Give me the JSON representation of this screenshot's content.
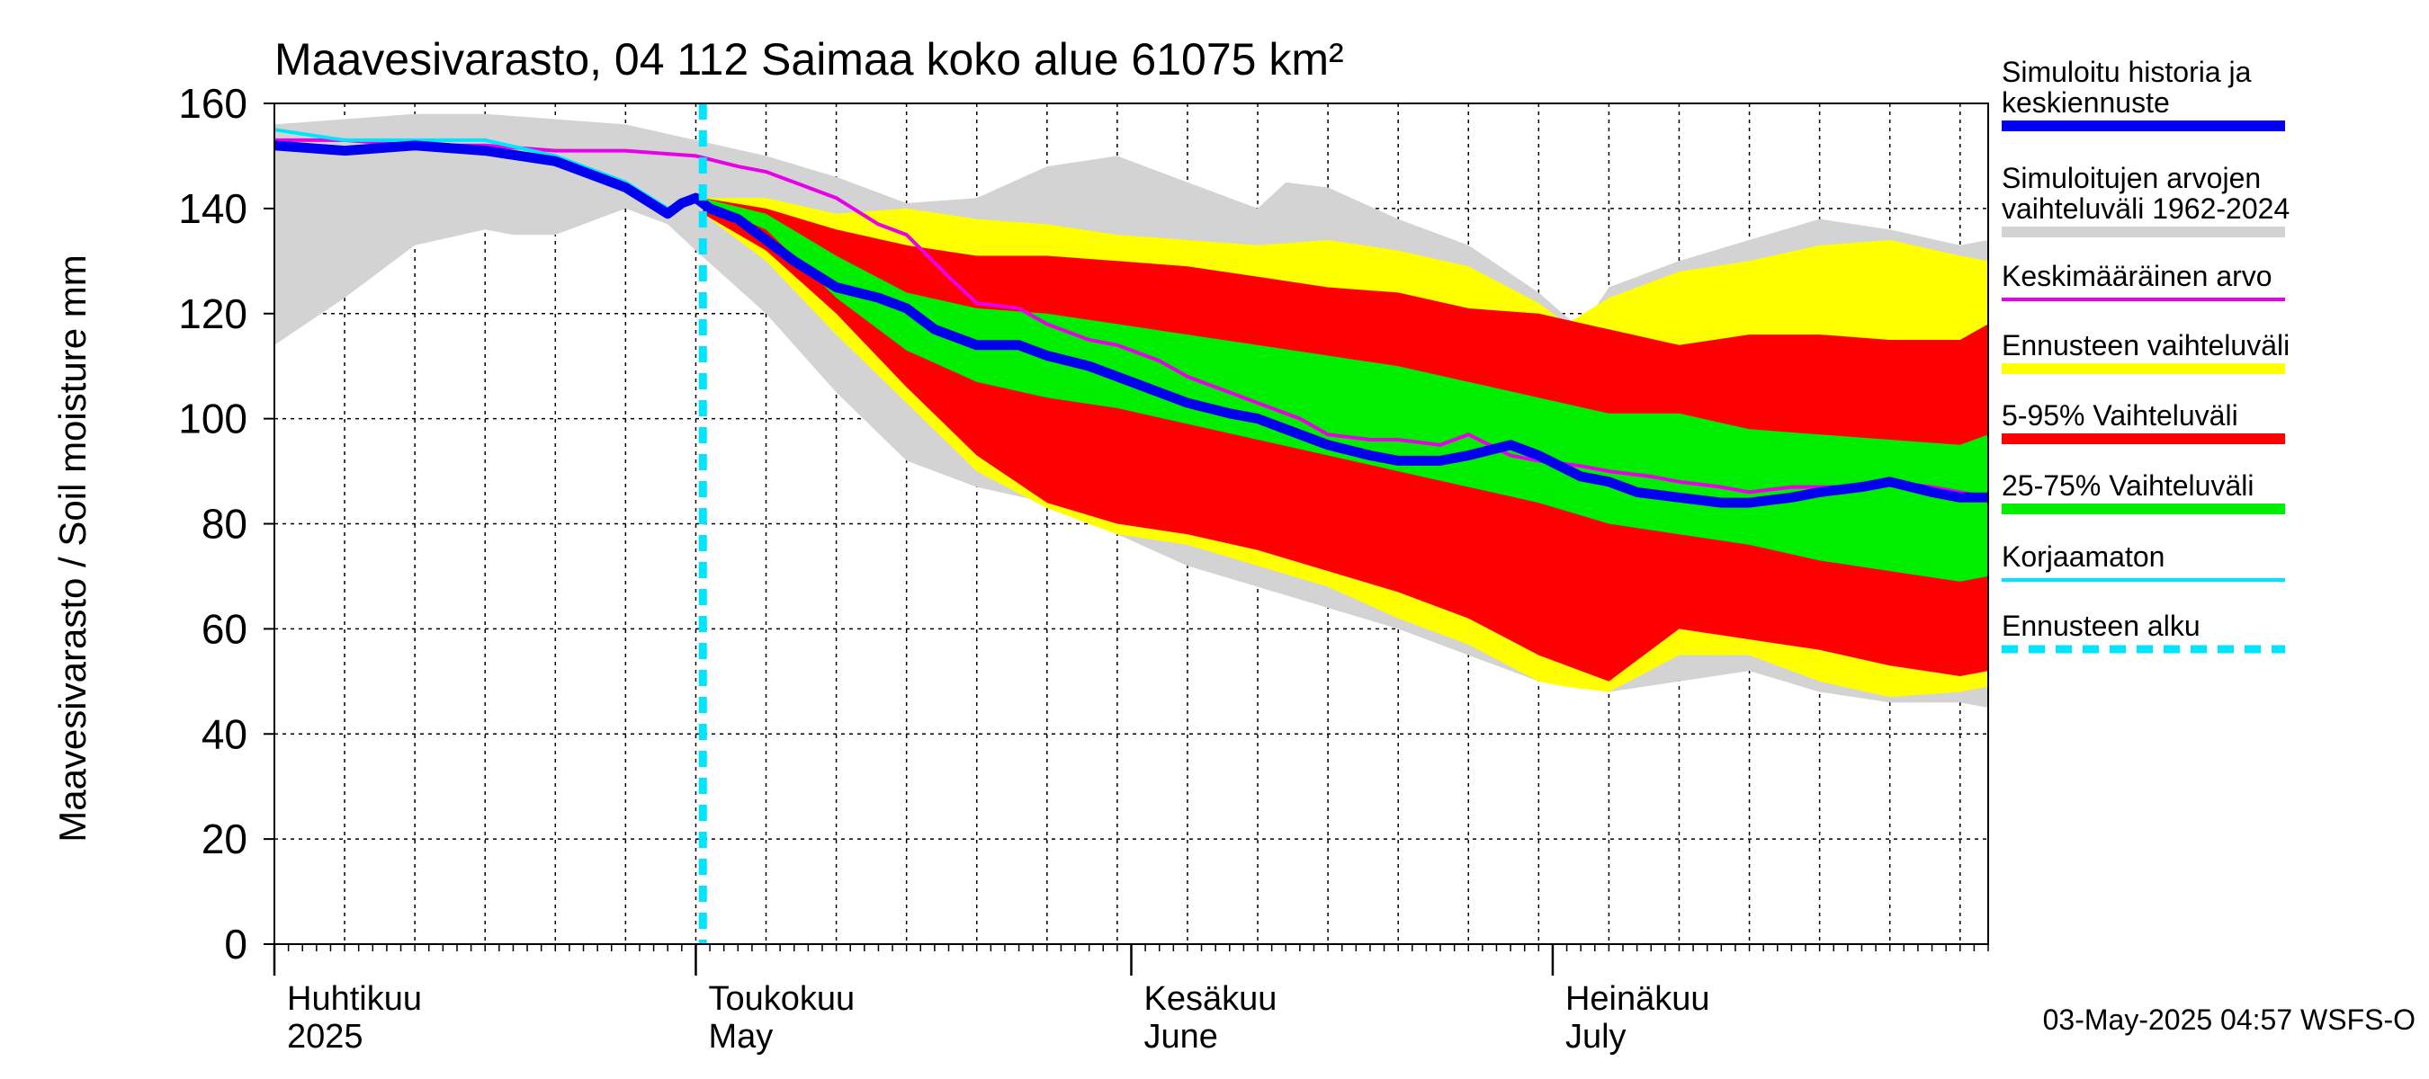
{
  "chart_data": {
    "type": "area",
    "title": "Maavesivarasto, 04 112 Saimaa koko alue 61075 km²",
    "ylabel": "Maavesivarasto / Soil moisture   mm",
    "ylim": [
      0,
      160
    ],
    "y_ticks": [
      0,
      20,
      40,
      60,
      80,
      100,
      120,
      140,
      160
    ],
    "x_range_days": [
      0,
      122
    ],
    "month_labels": [
      {
        "fi": "Huhtikuu",
        "en": "2025",
        "day": 0
      },
      {
        "fi": "Toukokuu",
        "en": "May",
        "day": 30
      },
      {
        "fi": "Kesäkuu",
        "en": "June",
        "day": 61
      },
      {
        "fi": "Heinäkuu",
        "en": "July",
        "day": 91
      }
    ],
    "forecast_start_day": 30.5,
    "footer": "03-May-2025 04:57 WSFS-O",
    "colors": {
      "history": "#0000ee",
      "sim_range": "#d3d3d3",
      "mean": "#e800e8",
      "forecast_range": "#ffff00",
      "range_5_95": "#ff0000",
      "range_25_75": "#00ee00",
      "uncorrected": "#00e5ff",
      "forecast_start": "#00e5ff"
    },
    "legend": [
      {
        "key": "history",
        "label": "Simuloitu historia ja keskiennuste"
      },
      {
        "key": "sim_range",
        "label": "Simuloitujen arvojen vaihteluväli 1962-2024"
      },
      {
        "key": "mean",
        "label": "Keskimääräinen arvo"
      },
      {
        "key": "forecast_range",
        "label": "Ennusteen vaihteluväli"
      },
      {
        "key": "range_5_95",
        "label": "5-95% Vaihteluväli"
      },
      {
        "key": "range_25_75",
        "label": "25-75% Vaihteluväli"
      },
      {
        "key": "uncorrected",
        "label": "Korjaamaton"
      },
      {
        "key": "forecast_start",
        "label": "Ennusteen alku"
      }
    ],
    "series": {
      "grey_upper": {
        "x": [
          0,
          5,
          10,
          15,
          20,
          25,
          30,
          35,
          40,
          45,
          50,
          55,
          60,
          65,
          70,
          72,
          75,
          80,
          85,
          90,
          93,
          95,
          100,
          105,
          110,
          115,
          120,
          122
        ],
        "y": [
          156,
          157,
          158,
          158,
          157,
          156,
          153,
          150,
          146,
          141,
          142,
          148,
          150,
          145,
          140,
          145,
          144,
          138,
          133,
          124,
          117,
          125,
          130,
          134,
          138,
          136,
          133,
          134
        ]
      },
      "grey_lower": {
        "x": [
          0,
          5,
          10,
          15,
          17,
          20,
          25,
          28,
          30,
          35,
          40,
          45,
          50,
          55,
          60,
          65,
          70,
          75,
          80,
          85,
          90,
          95,
          100,
          105,
          110,
          115,
          120,
          122
        ],
        "y": [
          114,
          123,
          133,
          136,
          135,
          135,
          140,
          137,
          132,
          120,
          105,
          92,
          87,
          84,
          78,
          72,
          68,
          64,
          60,
          55,
          50,
          48,
          50,
          52,
          48,
          46,
          46,
          45
        ]
      },
      "yellow_upper": {
        "x": [
          30.5,
          35,
          40,
          45,
          50,
          55,
          60,
          65,
          70,
          75,
          80,
          85,
          90,
          92,
          95,
          100,
          105,
          110,
          115,
          120,
          122
        ],
        "y": [
          142,
          142,
          139,
          140,
          138,
          137,
          135,
          134,
          133,
          134,
          132,
          129,
          122,
          118,
          123,
          128,
          130,
          133,
          134,
          131,
          130
        ]
      },
      "yellow_lower": {
        "x": [
          30.5,
          35,
          40,
          45,
          50,
          55,
          60,
          65,
          70,
          75,
          80,
          85,
          90,
          92,
          95,
          100,
          105,
          110,
          115,
          120,
          122
        ],
        "y": [
          139,
          130,
          116,
          103,
          90,
          83,
          78,
          76,
          72,
          68,
          62,
          57,
          50,
          49,
          48,
          55,
          55,
          50,
          47,
          48,
          49
        ]
      },
      "red_upper": {
        "x": [
          30.5,
          35,
          40,
          45,
          50,
          55,
          60,
          65,
          70,
          75,
          80,
          85,
          90,
          95,
          100,
          105,
          110,
          115,
          120,
          122
        ],
        "y": [
          142,
          140,
          136,
          133,
          131,
          131,
          130,
          129,
          127,
          125,
          124,
          121,
          120,
          117,
          114,
          116,
          116,
          115,
          115,
          118
        ]
      },
      "red_lower": {
        "x": [
          30.5,
          35,
          40,
          45,
          50,
          55,
          60,
          65,
          70,
          75,
          80,
          85,
          90,
          95,
          100,
          105,
          110,
          115,
          120,
          122
        ],
        "y": [
          139,
          132,
          120,
          106,
          93,
          84,
          80,
          78,
          75,
          71,
          67,
          62,
          55,
          50,
          60,
          58,
          56,
          53,
          51,
          52
        ]
      },
      "green_upper": {
        "x": [
          30.5,
          35,
          40,
          45,
          50,
          55,
          60,
          65,
          70,
          75,
          80,
          85,
          90,
          95,
          100,
          105,
          110,
          115,
          120,
          122
        ],
        "y": [
          142,
          139,
          131,
          124,
          121,
          120,
          118,
          116,
          114,
          112,
          110,
          107,
          104,
          101,
          101,
          98,
          97,
          96,
          95,
          97
        ]
      },
      "green_lower": {
        "x": [
          30.5,
          35,
          40,
          45,
          50,
          55,
          60,
          65,
          70,
          75,
          80,
          85,
          90,
          95,
          100,
          105,
          110,
          115,
          120,
          122
        ],
        "y": [
          141,
          136,
          123,
          113,
          107,
          104,
          102,
          99,
          96,
          93,
          90,
          87,
          84,
          80,
          78,
          76,
          73,
          71,
          69,
          70
        ]
      },
      "history_line": {
        "x": [
          0,
          5,
          10,
          15,
          20,
          25,
          28,
          29,
          30,
          31,
          33,
          35,
          37,
          40,
          43,
          45,
          47,
          50,
          53,
          55,
          58,
          60,
          63,
          65,
          68,
          70,
          73,
          75,
          78,
          80,
          83,
          85,
          88,
          90,
          93,
          95,
          97,
          100,
          103,
          105,
          108,
          110,
          113,
          115,
          118,
          120,
          122
        ],
        "y": [
          152,
          151,
          152,
          151,
          149,
          144,
          139,
          141,
          142,
          140,
          138,
          134,
          130,
          125,
          123,
          121,
          117,
          114,
          114,
          112,
          110,
          108,
          105,
          103,
          101,
          100,
          97,
          95,
          93,
          92,
          92,
          93,
          95,
          93,
          89,
          88,
          86,
          85,
          84,
          84,
          85,
          86,
          87,
          88,
          86,
          85,
          85
        ]
      },
      "mean_line": {
        "x": [
          0,
          5,
          10,
          15,
          20,
          25,
          30,
          33,
          35,
          40,
          43,
          45,
          48,
          50,
          53,
          55,
          58,
          60,
          63,
          65,
          68,
          70,
          73,
          75,
          78,
          80,
          83,
          85,
          88,
          90,
          93,
          95,
          98,
          100,
          103,
          105,
          108,
          110,
          113,
          115,
          118,
          120,
          122
        ],
        "y": [
          153,
          153,
          152,
          152,
          151,
          151,
          150,
          148,
          147,
          142,
          137,
          135,
          127,
          122,
          121,
          118,
          115,
          114,
          111,
          108,
          105,
          103,
          100,
          97,
          96,
          96,
          95,
          97,
          93,
          92,
          91,
          90,
          89,
          88,
          87,
          86,
          87,
          87,
          87,
          88,
          87,
          86,
          85
        ]
      },
      "uncorrected_line": {
        "x": [
          0,
          5,
          10,
          15,
          20,
          25,
          28,
          29,
          30,
          31
        ],
        "y": [
          155,
          153,
          153,
          153,
          150,
          145,
          140,
          141,
          142,
          141
        ]
      }
    }
  }
}
